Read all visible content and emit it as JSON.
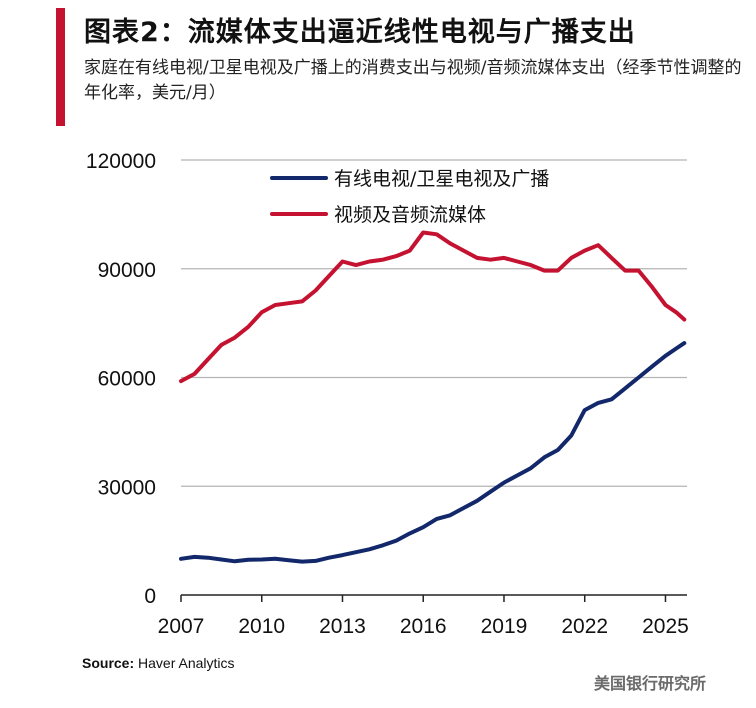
{
  "header": {
    "title": "图表2：流媒体支出逼近线性电视与广播支出",
    "subtitle": "家庭在有线电视/卫星电视及广播上的消费支出与视频/音频流媒体支出（经季节性调整的年化率，美元/月）",
    "accent_color": "#c41230"
  },
  "footer": {
    "source_label": "Source:",
    "source_text": "Haver Analytics",
    "brand": "美国银行研究所"
  },
  "chart_data": {
    "type": "line",
    "title": "图表2：流媒体支出逼近线性电视与广播支出",
    "ylim": [
      0,
      120000
    ],
    "xlim": [
      2007,
      2025.8
    ],
    "y_ticks": [
      0,
      30000,
      60000,
      90000,
      120000
    ],
    "x_ticks": [
      2007,
      2010,
      2013,
      2016,
      2019,
      2022,
      2025
    ],
    "grid": "horizontal",
    "legend_position": "top-center",
    "series": [
      {
        "name": "有线电视/卫星电视及广播",
        "color": "#12286b",
        "points": [
          [
            2007.0,
            10000
          ],
          [
            2007.5,
            10500
          ],
          [
            2008.0,
            10300
          ],
          [
            2008.5,
            9800
          ],
          [
            2009.0,
            9300
          ],
          [
            2009.5,
            9700
          ],
          [
            2010.0,
            9800
          ],
          [
            2010.5,
            10000
          ],
          [
            2011.0,
            9600
          ],
          [
            2011.5,
            9200
          ],
          [
            2012.0,
            9400
          ],
          [
            2012.5,
            10300
          ],
          [
            2013.0,
            11000
          ],
          [
            2013.5,
            11800
          ],
          [
            2014.0,
            12600
          ],
          [
            2014.5,
            13700
          ],
          [
            2015.0,
            15000
          ],
          [
            2015.5,
            17000
          ],
          [
            2016.0,
            18700
          ],
          [
            2016.5,
            21000
          ],
          [
            2017.0,
            22000
          ],
          [
            2017.5,
            24000
          ],
          [
            2018.0,
            26000
          ],
          [
            2018.5,
            28500
          ],
          [
            2019.0,
            31000
          ],
          [
            2019.5,
            33000
          ],
          [
            2020.0,
            35000
          ],
          [
            2020.5,
            38000
          ],
          [
            2021.0,
            40000
          ],
          [
            2021.5,
            44000
          ],
          [
            2022.0,
            51000
          ],
          [
            2022.5,
            53000
          ],
          [
            2023.0,
            54000
          ],
          [
            2023.5,
            57000
          ],
          [
            2024.0,
            60000
          ],
          [
            2024.5,
            63000
          ],
          [
            2025.0,
            66000
          ],
          [
            2025.4,
            68000
          ],
          [
            2025.7,
            69500
          ]
        ]
      },
      {
        "name": "视频及音频流媒体",
        "color": "#c41230",
        "points": [
          [
            2007.0,
            59000
          ],
          [
            2007.5,
            61000
          ],
          [
            2008.0,
            65000
          ],
          [
            2008.5,
            69000
          ],
          [
            2009.0,
            71000
          ],
          [
            2009.5,
            74000
          ],
          [
            2010.0,
            78000
          ],
          [
            2010.5,
            80000
          ],
          [
            2011.0,
            80500
          ],
          [
            2011.5,
            81000
          ],
          [
            2012.0,
            84000
          ],
          [
            2012.5,
            88000
          ],
          [
            2013.0,
            92000
          ],
          [
            2013.5,
            91000
          ],
          [
            2014.0,
            92000
          ],
          [
            2014.5,
            92500
          ],
          [
            2015.0,
            93500
          ],
          [
            2015.5,
            95000
          ],
          [
            2016.0,
            100000
          ],
          [
            2016.5,
            99500
          ],
          [
            2017.0,
            97000
          ],
          [
            2017.5,
            95000
          ],
          [
            2018.0,
            93000
          ],
          [
            2018.5,
            92500
          ],
          [
            2019.0,
            93000
          ],
          [
            2019.5,
            92000
          ],
          [
            2020.0,
            91000
          ],
          [
            2020.5,
            89500
          ],
          [
            2021.0,
            89500
          ],
          [
            2021.5,
            93000
          ],
          [
            2022.0,
            95000
          ],
          [
            2022.5,
            96500
          ],
          [
            2023.0,
            93000
          ],
          [
            2023.5,
            89500
          ],
          [
            2024.0,
            89500
          ],
          [
            2024.5,
            85000
          ],
          [
            2025.0,
            80000
          ],
          [
            2025.4,
            78000
          ],
          [
            2025.7,
            76000
          ]
        ]
      }
    ]
  }
}
